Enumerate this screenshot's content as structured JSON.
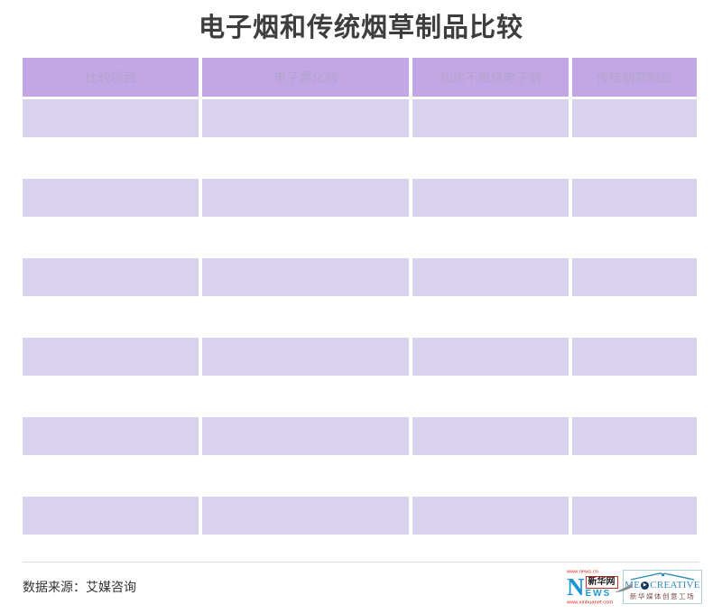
{
  "title": "电子烟和传统烟草制品比较",
  "chart_data": {
    "type": "table",
    "title": "电子烟和传统烟草制品比较",
    "columns": [
      "比较项目",
      "电子雾化烟",
      "加热不燃烧电子烟",
      "传统烟草制品"
    ],
    "rows": [
      [
        "",
        "",
        "",
        ""
      ],
      [
        "",
        "",
        "",
        ""
      ],
      [
        "",
        "",
        "",
        ""
      ],
      [
        "",
        "",
        "",
        ""
      ],
      [
        "",
        "",
        "",
        ""
      ],
      [
        "",
        "",
        "",
        ""
      ]
    ]
  },
  "footer": {
    "source": "数据来源：艾媒咨询",
    "xinhua": {
      "url_top": "www.news.cn",
      "big_n": "N",
      "name": "新华网",
      "ews": "EWS",
      "url_bottom": "www.xinhuanet.com"
    },
    "medcreative": {
      "text_left": "ME",
      "play_icon": "▶",
      "text_right": "CREATIVE",
      "subtitle": "新华媒体创意工场"
    }
  },
  "colors": {
    "header_bg": "#c3a6e6",
    "header_text": "#b2a5cb",
    "row_bg": "#d9d2ee",
    "title_text": "#3d3d3d",
    "divider": "#dcdcdc",
    "xinhua_blue": "#1a96d5",
    "logo_red": "#cf2b20",
    "med_blue": "#2f8cba"
  }
}
